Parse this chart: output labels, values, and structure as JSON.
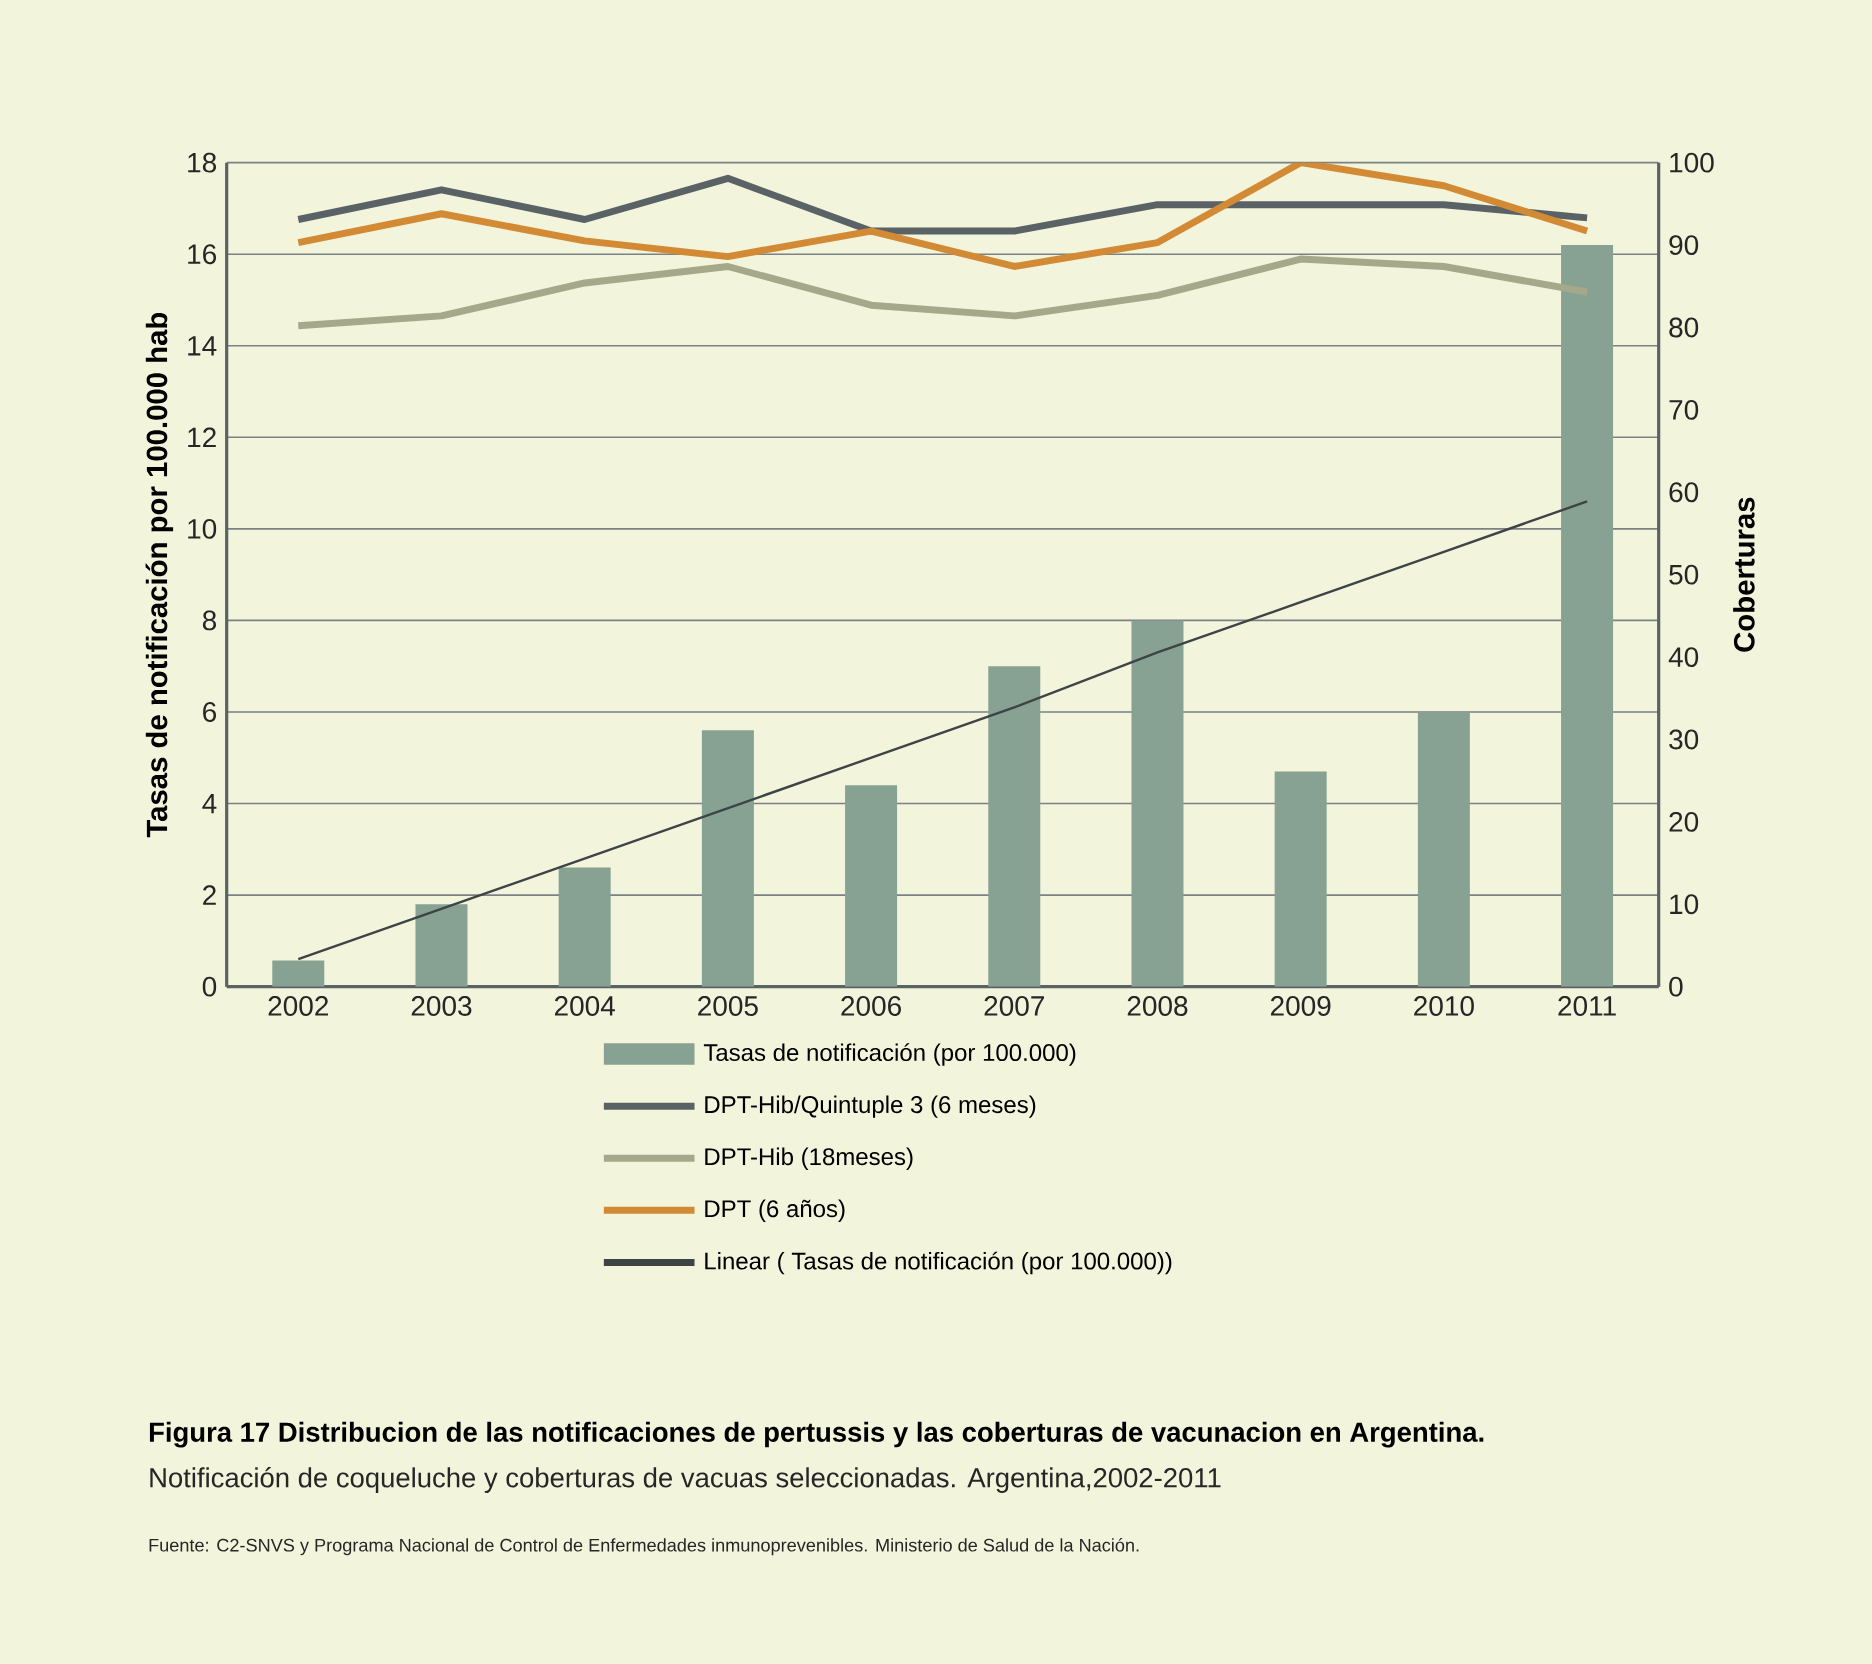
{
  "chart_data": {
    "type": "bar",
    "title": "Figura 17 Distribucion de  las notificaciones de pertussis y las coberturas de vacunacion en Argentina.",
    "subtitle": "Notificación de coqueluche y coberturas de vacuas seleccionadas. Argentina,2002-2011",
    "annotations": [
      "Fuente: C2-SNVS y Programa Nacional de Control de Enfermedades inmunoprevenibles. Ministerio de Salud de la Nación."
    ],
    "ylabel": "Tasas de notificación por 100.000 hab",
    "y2label": "Coberturas",
    "categories": [
      "2002",
      "2003",
      "2004",
      "2005",
      "2006",
      "2007",
      "2008",
      "2009",
      "2010",
      "2011"
    ],
    "series": [
      {
        "name": "Tasas de notificación (por 100.000)",
        "color": "#87a292",
        "values": [
          0.57,
          1.8,
          2.6,
          5.6,
          4.4,
          7.0,
          8.0,
          4.7,
          6.0,
          16.2
        ]
      },
      {
        "name": "DPT-Hib/Quintuple 3 (6 meses)",
        "type": "line",
        "axis": "y2",
        "color": "#5a6266",
        "values": [
          93.1,
          96.7,
          93.1,
          98.1,
          91.7,
          91.7,
          94.9,
          94.9,
          94.9,
          93.3
        ]
      },
      {
        "name": "DPT-Hib (18meses)",
        "type": "line",
        "axis": "y2",
        "color": "#a5a98a",
        "values": [
          80.2,
          81.4,
          85.4,
          87.4,
          82.7,
          81.4,
          83.9,
          88.3,
          87.4,
          84.3
        ]
      },
      {
        "name": "DPT (6 años)",
        "type": "line",
        "axis": "y2",
        "color": "#d38a35",
        "values": [
          90.3,
          93.8,
          90.5,
          88.6,
          91.7,
          87.4,
          90.3,
          100,
          97.2,
          91.7
        ]
      },
      {
        "name": "Linear ( Tasas de notificación (por 100.000))",
        "type": "line",
        "color": "#3e4446",
        "values": [
          0.6,
          1.7,
          2.8,
          3.9,
          5.0,
          6.1,
          7.3,
          8.4,
          9.5,
          10.6
        ]
      }
    ],
    "ylim": [
      0,
      18
    ],
    "yticks": [
      0,
      2,
      4,
      6,
      8,
      10,
      12,
      14,
      16,
      18
    ],
    "y2lim": [
      0,
      100
    ],
    "y2ticks": [
      0,
      10,
      20,
      30,
      40,
      50,
      60,
      70,
      80,
      90,
      100
    ],
    "grid": "y",
    "legend": "bottom",
    "marker": "none",
    "line_style": "solid"
  }
}
